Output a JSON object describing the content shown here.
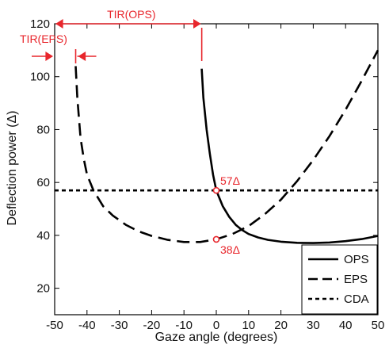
{
  "chart_data": {
    "type": "line",
    "title": "",
    "xlabel": "Gaze angle (degrees)",
    "ylabel": "Deflection power (Δ)",
    "xlim": [
      -50,
      50
    ],
    "ylim": [
      10,
      120
    ],
    "xticks": [
      -50,
      -40,
      -30,
      -20,
      -10,
      0,
      10,
      20,
      30,
      40,
      50
    ],
    "yticks": [
      20,
      40,
      60,
      80,
      100,
      120
    ],
    "grid": false,
    "legend_position": "bottom-right",
    "series": [
      {
        "name": "OPS",
        "style": "solid",
        "x": [
          -4.5,
          -4,
          -3,
          -2,
          -1,
          0,
          2,
          4,
          6,
          8,
          10,
          13,
          16,
          20,
          25,
          30,
          35,
          40,
          45,
          50
        ],
        "y": [
          103,
          92,
          80,
          71,
          63,
          57,
          51,
          47,
          44,
          42,
          40.5,
          39.2,
          38.3,
          37.6,
          37.2,
          37.1,
          37.3,
          37.8,
          38.6,
          39.8
        ]
      },
      {
        "name": "EPS",
        "style": "dashed",
        "x": [
          -43.5,
          -43,
          -42,
          -41,
          -40,
          -38,
          -35,
          -32,
          -28,
          -24,
          -20,
          -15,
          -10,
          -5,
          0,
          5,
          10,
          15,
          20,
          25,
          30,
          35,
          40,
          45,
          50
        ],
        "y": [
          104,
          92,
          77,
          69,
          63,
          57,
          51,
          47.5,
          44,
          41.5,
          39.8,
          38.3,
          37.5,
          37.5,
          38.5,
          40.5,
          43.5,
          48,
          53.5,
          60.5,
          68.5,
          77.5,
          87.5,
          98.5,
          110
        ]
      },
      {
        "name": "CDA",
        "style": "dotted",
        "x": [
          -50,
          50
        ],
        "y": [
          57,
          57
        ]
      }
    ],
    "annotations": [
      {
        "text": "TIR(OPS)",
        "x_from": -50,
        "x_to": -4.5,
        "kind": "double-arrow"
      },
      {
        "text": "TIR(EPS)",
        "x_from": -50,
        "x_to": -43.5,
        "kind": "inward-arrows"
      }
    ],
    "markers": [
      {
        "x": 0,
        "y": 57,
        "label": "57Δ"
      },
      {
        "x": 0,
        "y": 38.5,
        "label": "38Δ"
      }
    ],
    "colors": {
      "axis": "#000000",
      "annotation": "#e8262c",
      "series": "#000000"
    }
  }
}
